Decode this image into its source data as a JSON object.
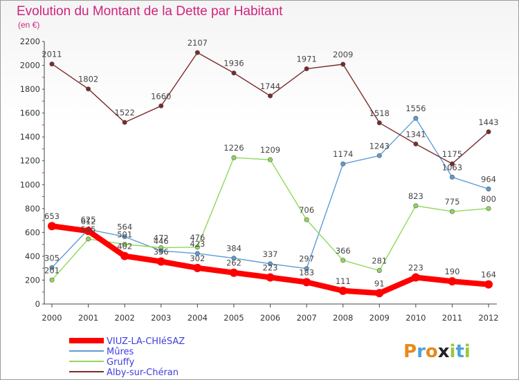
{
  "header": {
    "title": "Evolution du Montant de la Dette par Habitant",
    "subtitle": "(en €)"
  },
  "logo": {
    "text": "Proxiti",
    "letters": [
      {
        "ch": "P",
        "color": "#e8891a"
      },
      {
        "ch": "r",
        "color": "#4aa3d8"
      },
      {
        "ch": "o",
        "color": "#e8891a"
      },
      {
        "ch": "x",
        "color": "#222222"
      },
      {
        "ch": "i",
        "color": "#9ac63c"
      },
      {
        "ch": "t",
        "color": "#4aa3d8"
      },
      {
        "ch": "i",
        "color": "#9ac63c"
      }
    ]
  },
  "chart_data": {
    "type": "line",
    "title": "Evolution du Montant de la Dette par Habitant",
    "subtitle": "(en €)",
    "x": [
      "2000",
      "2001",
      "2002",
      "2003",
      "2004",
      "2005",
      "2006",
      "2007",
      "2008",
      "2009",
      "2010",
      "2011",
      "2012"
    ],
    "y_ticks": [
      0,
      200,
      400,
      600,
      800,
      1000,
      1200,
      1400,
      1600,
      1800,
      2000,
      2200
    ],
    "ylim": [
      0,
      2200
    ],
    "grid": false,
    "legend_position": "bottom-left",
    "series": [
      {
        "name": "VIUZ-LA-CHIéSAZ",
        "color": "#ff0000",
        "emphasis": true,
        "values": [
          653,
          612,
          402,
          356,
          302,
          262,
          223,
          183,
          111,
          91,
          223,
          190,
          164
        ]
      },
      {
        "name": "Mûres",
        "color": "#5b9bd5",
        "values": [
          305,
          625,
          564,
          446,
          423,
          384,
          337,
          297,
          1174,
          1243,
          1556,
          1063,
          964
        ]
      },
      {
        "name": "Gruffy",
        "color": "#8fd85a",
        "values": [
          201,
          545,
          501,
          472,
          476,
          1226,
          1209,
          706,
          366,
          281,
          823,
          775,
          800
        ]
      },
      {
        "name": "Alby-sur-Chéran",
        "color": "#7b2a2a",
        "values": [
          2011,
          1802,
          1522,
          1660,
          2107,
          1936,
          1744,
          1971,
          2009,
          1518,
          1341,
          1175,
          1443
        ]
      }
    ]
  }
}
